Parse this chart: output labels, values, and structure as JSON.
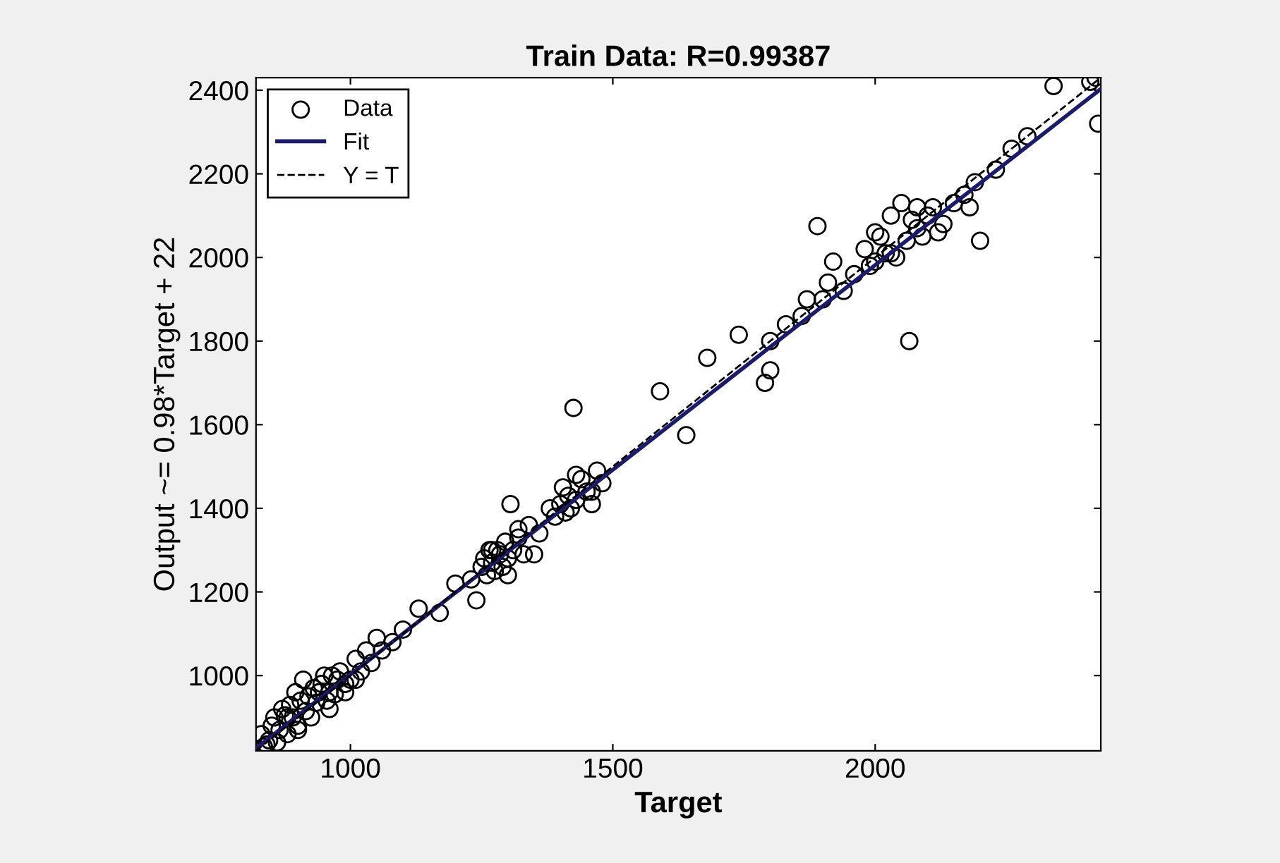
{
  "chart_data": {
    "type": "scatter",
    "title": "Train Data: R=0.99387",
    "xlabel": "Target",
    "ylabel": "Output ~= 0.98*Target + 22",
    "xlim": [
      820,
      2430
    ],
    "ylim": [
      820,
      2430
    ],
    "xticks": [
      1000,
      1500,
      2000
    ],
    "yticks": [
      1000,
      1200,
      1400,
      1600,
      1800,
      2000,
      2200,
      2400
    ],
    "grid": false,
    "legend": "top left",
    "series": [
      {
        "name": "Data",
        "marker": "circle",
        "color": "#000000",
        "x": [
          830,
          835,
          840,
          845,
          850,
          855,
          860,
          865,
          870,
          875,
          880,
          885,
          890,
          895,
          900,
          905,
          910,
          915,
          920,
          925,
          930,
          935,
          940,
          945,
          950,
          955,
          960,
          965,
          970,
          975,
          980,
          990,
          1000,
          1010,
          1020,
          1030,
          1040,
          1050,
          1060,
          1080,
          1100,
          1130,
          1170,
          1200,
          1230,
          1240,
          1250,
          1255,
          1260,
          1265,
          1270,
          1275,
          1280,
          1285,
          1290,
          1295,
          1300,
          1305,
          1310,
          1320,
          1330,
          1340,
          1350,
          1360,
          1380,
          1390,
          1400,
          1405,
          1410,
          1415,
          1420,
          1425,
          1430,
          1440,
          1450,
          1460,
          1470,
          1480,
          1590,
          1640,
          1680,
          1740,
          1790,
          1800,
          1800,
          1830,
          1860,
          1870,
          1890,
          1900,
          1910,
          1920,
          1940,
          1960,
          1980,
          1990,
          2000,
          2010,
          2020,
          2030,
          2040,
          2050,
          2060,
          2070,
          2065,
          2080,
          2090,
          2100,
          2110,
          2130,
          2150,
          2170,
          2180,
          2190,
          2200,
          2230,
          2260,
          2290,
          2340,
          2410,
          2420,
          2425,
          880,
          900,
          960,
          990,
          1010,
          1270,
          1300,
          1320,
          1430,
          1460,
          2000,
          2030,
          2080,
          2120
        ],
        "values": [
          860,
          830,
          835,
          845,
          880,
          900,
          840,
          870,
          920,
          905,
          860,
          930,
          900,
          960,
          880,
          940,
          990,
          915,
          950,
          900,
          970,
          935,
          960,
          980,
          1000,
          940,
          960,
          1000,
          955,
          990,
          1010,
          980,
          990,
          1040,
          1010,
          1060,
          1030,
          1090,
          1060,
          1080,
          1110,
          1160,
          1150,
          1220,
          1230,
          1180,
          1260,
          1280,
          1240,
          1300,
          1270,
          1250,
          1300,
          1290,
          1260,
          1320,
          1280,
          1410,
          1300,
          1330,
          1290,
          1360,
          1290,
          1340,
          1400,
          1380,
          1410,
          1450,
          1390,
          1430,
          1400,
          1640,
          1420,
          1470,
          1440,
          1410,
          1490,
          1460,
          1680,
          1575,
          1760,
          1815,
          1700,
          1730,
          1800,
          1840,
          1860,
          1900,
          2075,
          1900,
          1940,
          1990,
          1920,
          1960,
          2020,
          1980,
          1990,
          2050,
          2010,
          2100,
          2000,
          2130,
          2040,
          2090,
          1800,
          2070,
          2050,
          2100,
          2120,
          2080,
          2130,
          2150,
          2120,
          2180,
          2040,
          2210,
          2260,
          2290,
          2410,
          2420,
          2430,
          2320,
          900,
          870,
          920,
          960,
          990,
          1300,
          1240,
          1350,
          1480,
          1440,
          2060,
          2010,
          2120,
          2060
        ]
      },
      {
        "name": "Fit",
        "type": "line",
        "color": "#1a1a6e",
        "x": [
          820,
          2430
        ],
        "values": [
          826,
          2403
        ],
        "line_style": "solid",
        "marker": "none"
      },
      {
        "name": "Y = T",
        "type": "line",
        "color": "#000000",
        "x": [
          820,
          2430
        ],
        "values": [
          820,
          2430
        ],
        "line_style": "dashed",
        "marker": "none"
      }
    ]
  }
}
